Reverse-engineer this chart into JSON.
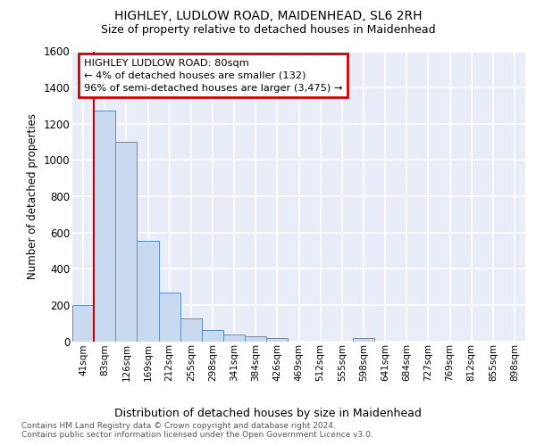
{
  "title": "HIGHLEY, LUDLOW ROAD, MAIDENHEAD, SL6 2RH",
  "subtitle": "Size of property relative to detached houses in Maidenhead",
  "xlabel": "Distribution of detached houses by size in Maidenhead",
  "ylabel": "Number of detached properties",
  "categories": [
    "41sqm",
    "83sqm",
    "126sqm",
    "169sqm",
    "212sqm",
    "255sqm",
    "298sqm",
    "341sqm",
    "384sqm",
    "426sqm",
    "469sqm",
    "512sqm",
    "555sqm",
    "598sqm",
    "641sqm",
    "684sqm",
    "727sqm",
    "769sqm",
    "812sqm",
    "855sqm",
    "898sqm"
  ],
  "values": [
    200,
    1275,
    1100,
    555,
    270,
    125,
    60,
    35,
    25,
    15,
    0,
    0,
    0,
    15,
    0,
    0,
    0,
    0,
    0,
    0,
    0
  ],
  "bar_color": "#c9d9f0",
  "bar_edge_color": "#5b8ec6",
  "highlight_color": "#cc0000",
  "annotation_line1": "HIGHLEY LUDLOW ROAD: 80sqm",
  "annotation_line2": "← 4% of detached houses are smaller (132)",
  "annotation_line3": "96% of semi-detached houses are larger (3,475) →",
  "ylim": [
    0,
    1600
  ],
  "yticks": [
    0,
    200,
    400,
    600,
    800,
    1000,
    1200,
    1400,
    1600
  ],
  "background_color": "#e8edf8",
  "grid_color": "#ffffff",
  "footer_line1": "Contains HM Land Registry data © Crown copyright and database right 2024.",
  "footer_line2": "Contains public sector information licensed under the Open Government Licence v3.0."
}
